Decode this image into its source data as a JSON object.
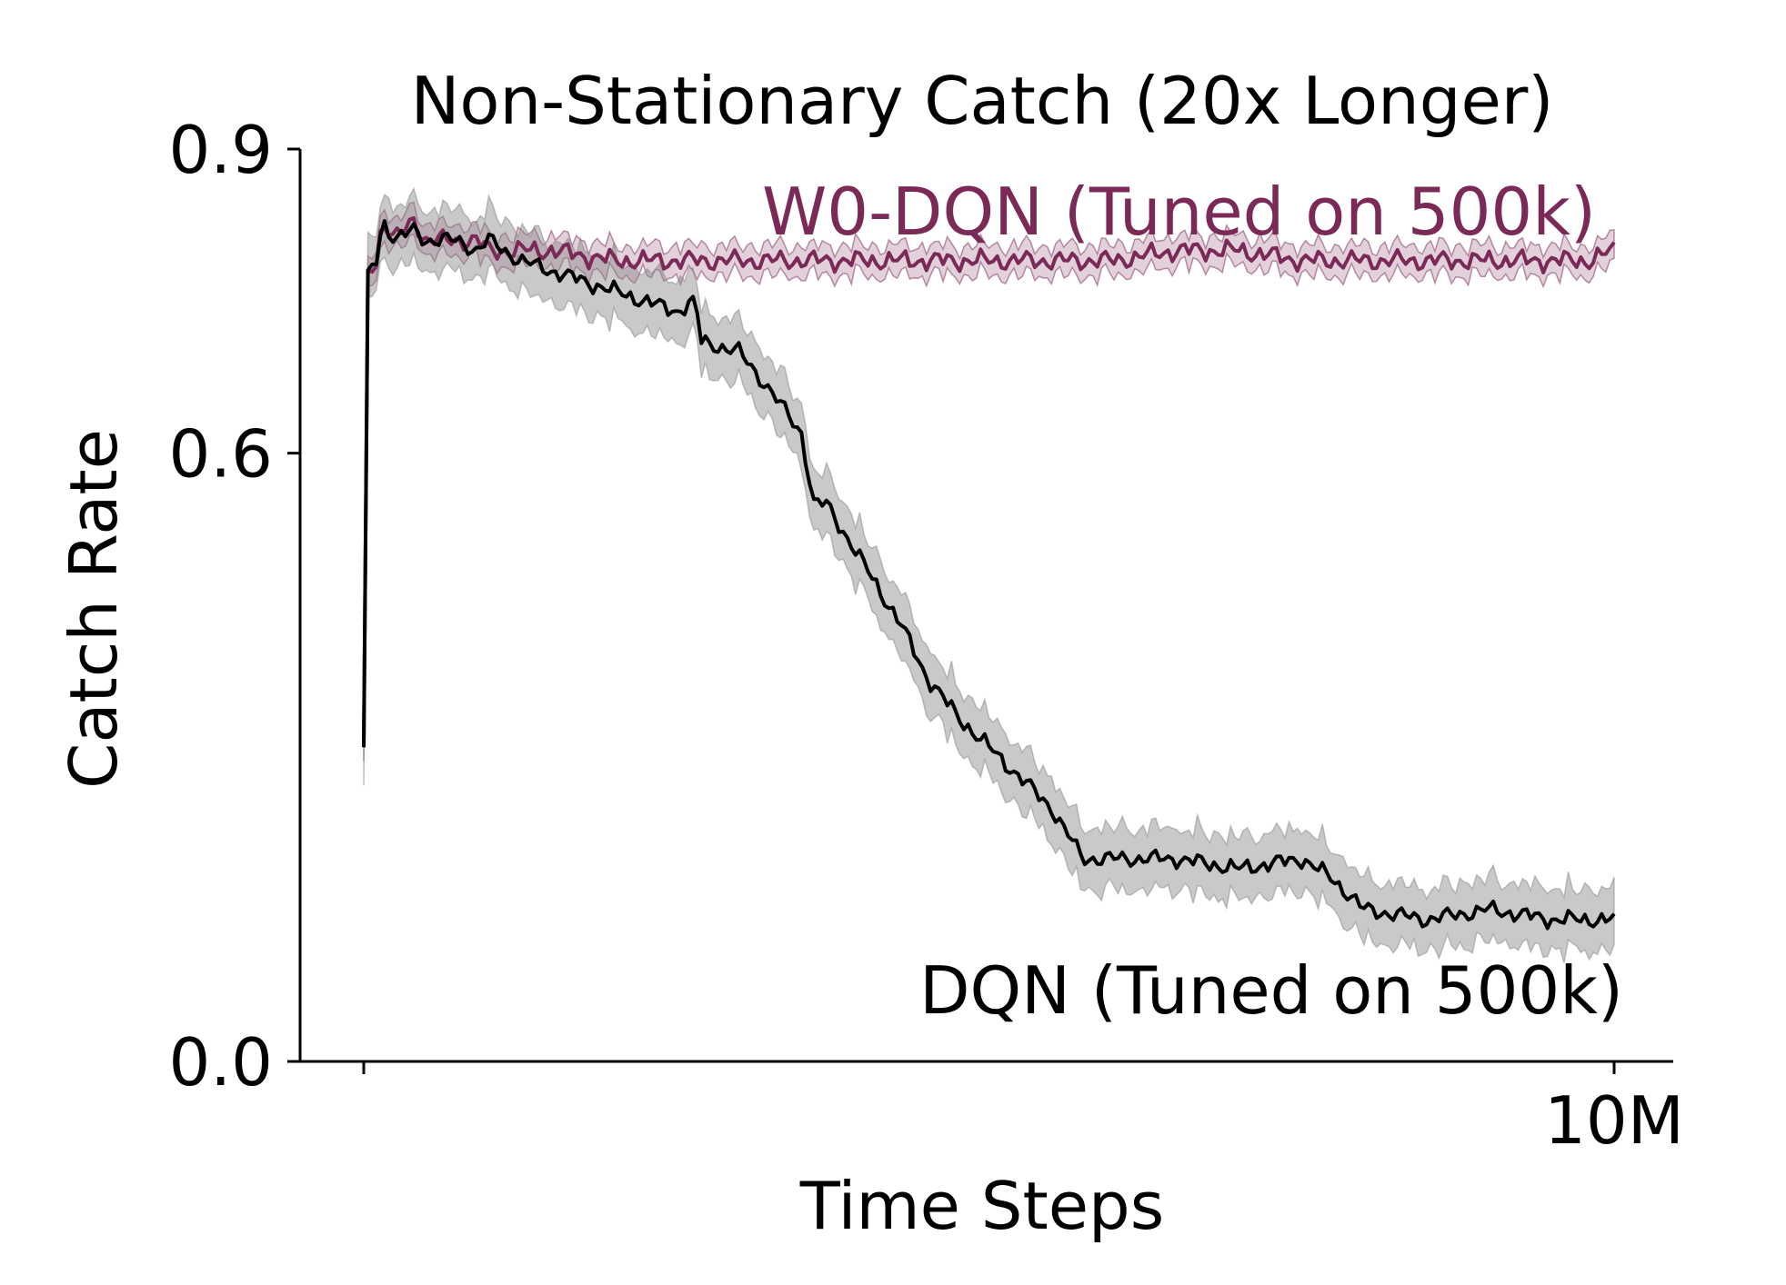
{
  "chart_data": {
    "type": "line",
    "title": "Non-Stationary Catch (20x Longer)",
    "xlabel": "Time Steps",
    "ylabel": "Catch Rate",
    "xlim": [
      0,
      10
    ],
    "ylim": [
      0.0,
      0.9
    ],
    "x_ticks": [
      0,
      10
    ],
    "x_tick_labels": [
      "",
      "10M"
    ],
    "y_ticks": [
      0.0,
      0.6,
      0.9
    ],
    "y_tick_labels": [
      "0.0",
      "0.6",
      "0.9"
    ],
    "grid": false,
    "legend": "none (direct labels)",
    "series": [
      {
        "name": "W0-DQN (Tuned on 500k)",
        "color": "#7b2a58",
        "label_position": "upper right, above its line",
        "x": [
          0,
          0.03,
          0.1,
          0.15,
          0.25,
          0.4,
          0.5,
          0.6,
          0.75,
          0.9,
          1.0,
          1.25,
          1.5,
          2.0,
          2.5,
          3.0,
          3.5,
          4.0,
          4.5,
          5.0,
          5.5,
          6.0,
          6.5,
          7.0,
          7.5,
          8.0,
          8.5,
          9.0,
          9.5,
          9.8,
          10.0
        ],
        "y": [
          0.31,
          0.78,
          0.79,
          0.83,
          0.81,
          0.83,
          0.81,
          0.81,
          0.81,
          0.81,
          0.8,
          0.8,
          0.8,
          0.79,
          0.79,
          0.79,
          0.79,
          0.79,
          0.79,
          0.79,
          0.79,
          0.79,
          0.8,
          0.8,
          0.79,
          0.79,
          0.79,
          0.79,
          0.79,
          0.79,
          0.8
        ],
        "band": 0.012
      },
      {
        "name": "DQN (Tuned on 500k)",
        "color": "#000000",
        "label_position": "lower right, below its line",
        "x": [
          0,
          0.03,
          0.1,
          0.15,
          0.25,
          0.4,
          0.5,
          0.6,
          0.75,
          0.9,
          1.0,
          1.25,
          1.5,
          1.75,
          2.0,
          2.25,
          2.5,
          2.65,
          2.7,
          3.0,
          3.2,
          3.5,
          3.6,
          3.7,
          3.8,
          4.0,
          4.2,
          4.3,
          4.5,
          4.75,
          5.0,
          5.25,
          5.5,
          5.75,
          6.0,
          6.5,
          7.0,
          7.5,
          7.75,
          8.0,
          8.5,
          9.0,
          9.5,
          10.0
        ],
        "y": [
          0.31,
          0.78,
          0.79,
          0.83,
          0.81,
          0.82,
          0.81,
          0.81,
          0.81,
          0.8,
          0.81,
          0.79,
          0.78,
          0.77,
          0.76,
          0.75,
          0.74,
          0.75,
          0.71,
          0.7,
          0.67,
          0.62,
          0.55,
          0.55,
          0.53,
          0.49,
          0.45,
          0.43,
          0.38,
          0.34,
          0.31,
          0.28,
          0.25,
          0.2,
          0.2,
          0.2,
          0.19,
          0.2,
          0.18,
          0.15,
          0.14,
          0.15,
          0.14,
          0.14
        ],
        "band": 0.025
      }
    ]
  }
}
